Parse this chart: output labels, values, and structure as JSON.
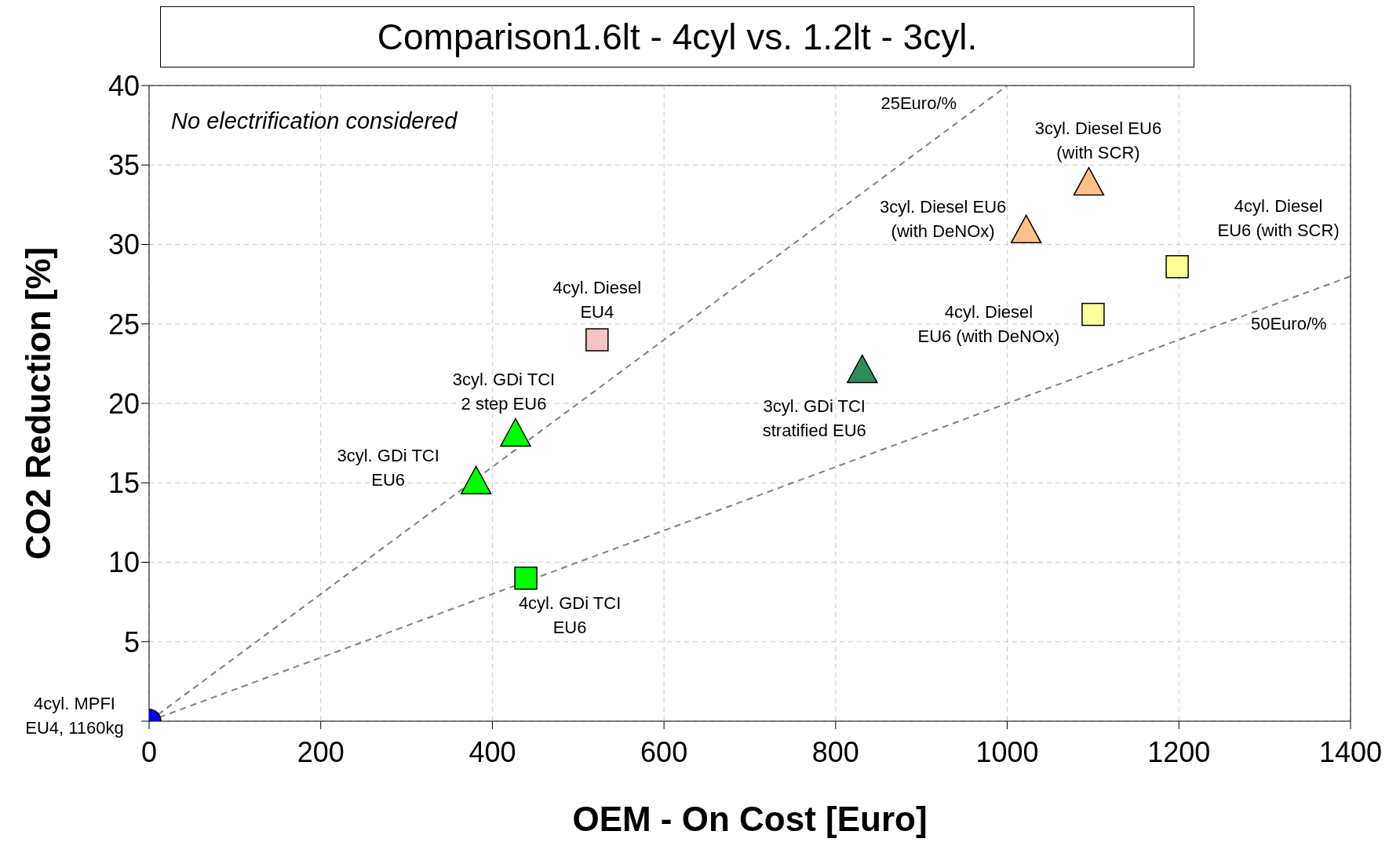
{
  "chart_data": {
    "type": "scatter",
    "title": "Comparison1.6lt - 4cyl vs. 1.2lt - 3cyl.",
    "xlabel": "OEM - On Cost [Euro]",
    "ylabel": "CO2 Reduction [%]",
    "xlim": [
      0,
      1400
    ],
    "xticks": [
      0,
      200,
      400,
      600,
      800,
      1000,
      1200,
      1400
    ],
    "ylim": [
      0,
      40
    ],
    "yticks": [
      {
        "value": 0,
        "label": null
      },
      5,
      10,
      15,
      20,
      25,
      30,
      35,
      40
    ],
    "grid": true,
    "series": [
      {
        "type": "line",
        "color": "#808080",
        "line_style": "dashed",
        "marker": "none",
        "x": [
          0,
          1000
        ],
        "values": [
          0,
          40
        ]
      },
      {
        "type": "line",
        "color": "#808080",
        "line_style": "dashed",
        "marker": "none",
        "x": [
          0,
          1400
        ],
        "values": [
          0,
          28
        ]
      },
      {
        "color": "#0000ff",
        "marker": "circle",
        "x": [
          0
        ],
        "values": [
          0
        ]
      },
      {
        "color": "#00ff00",
        "marker": "triangle",
        "x": [
          381,
          427
        ],
        "values": [
          15,
          18
        ]
      },
      {
        "color": "#00ff00",
        "marker": "square",
        "x": [
          439
        ],
        "values": [
          9
        ]
      },
      {
        "color": "#f6c4c4",
        "marker": "square",
        "x": [
          522
        ],
        "values": [
          24
        ]
      },
      {
        "color": "#2e8b57",
        "marker": "triangle",
        "x": [
          831
        ],
        "values": [
          22
        ]
      },
      {
        "color": "#ffc08a",
        "marker": "triangle",
        "x": [
          1022,
          1095
        ],
        "values": [
          30.8,
          33.8
        ]
      },
      {
        "color": "#ffff99",
        "marker": "square",
        "x": [
          1100,
          1198
        ],
        "values": [
          25.6,
          28.6
        ]
      }
    ],
    "annotations": [
      "No electrification considered",
      {
        "text": "4cyl. MPFI\nEU4, 1160kg",
        "x": 0,
        "y": 0
      },
      {
        "text": "3cyl. GDi TCI\nEU6",
        "x": 381,
        "y": 15
      },
      {
        "text": "3cyl. GDi TCI\n2 step EU6",
        "x": 427,
        "y": 18
      },
      {
        "text": "4cyl. GDi TCI\nEU6",
        "x": 439,
        "y": 9
      },
      {
        "text": "4cyl. Diesel\nEU4",
        "x": 522,
        "y": 24
      },
      {
        "text": "3cyl. GDi TCI\nstratified EU6",
        "x": 831,
        "y": 22
      },
      {
        "text": "4cyl. Diesel\nEU6 (with DeNOx)",
        "x": 1100,
        "y": 25.6
      },
      {
        "text": "3cyl. Diesel EU6\n(with DeNOx)",
        "x": 1022,
        "y": 30.8
      },
      {
        "text": "3cyl. Diesel EU6\n(with SCR)",
        "x": 1095,
        "y": 33.8
      },
      {
        "text": "4cyl. Diesel\nEU6 (with SCR)",
        "x": 1198,
        "y": 28.6
      },
      {
        "text": "25Euro/%",
        "x": 970,
        "y": 38.8
      },
      {
        "text": "50Euro/%",
        "x": 1328,
        "y": 26.56
      }
    ]
  }
}
